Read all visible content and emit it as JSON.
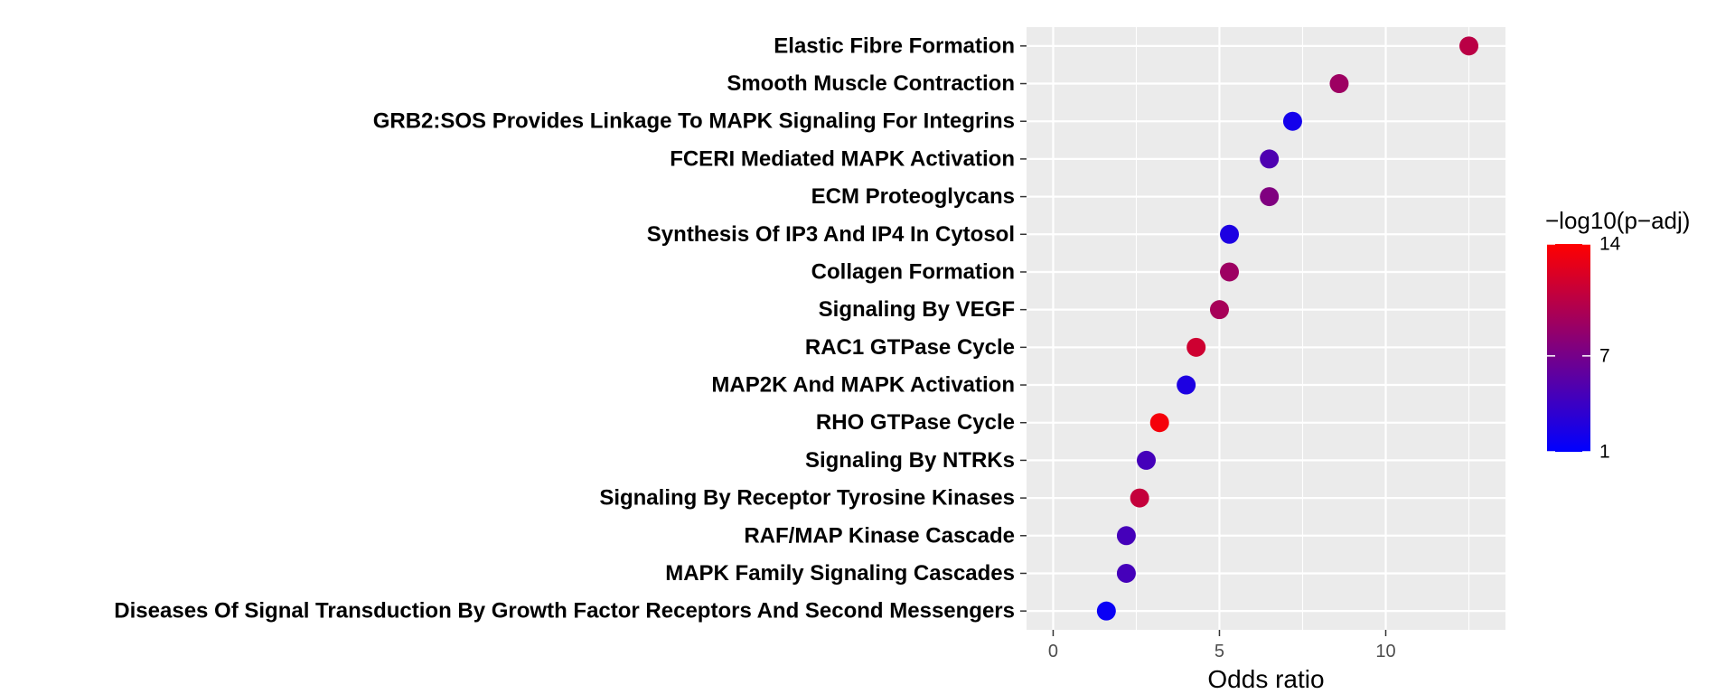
{
  "chart_data": {
    "type": "scatter",
    "xlabel": "Odds ratio",
    "ylabel": "",
    "xlim": [
      -0.8,
      13.6
    ],
    "x_ticks": [
      "0",
      "5",
      "10"
    ],
    "grid": true,
    "categories": [
      "Elastic Fibre Formation",
      "Smooth Muscle Contraction",
      "GRB2:SOS Provides Linkage To MAPK Signaling For Integrins",
      "FCERI Mediated MAPK Activation",
      "ECM Proteoglycans",
      "Synthesis Of IP3 And IP4 In Cytosol",
      "Collagen Formation",
      "Signaling By VEGF",
      "RAC1 GTPase Cycle",
      "MAP2K And MAPK Activation",
      "RHO GTPase Cycle",
      "Signaling By NTRKs",
      "Signaling By Receptor Tyrosine Kinases",
      "RAF/MAP Kinase Cascade",
      "MAPK Family Signaling Cascades",
      "Diseases Of Signal Transduction By Growth Factor Receptors And Second Messengers"
    ],
    "odds_ratio": [
      12.5,
      8.6,
      7.2,
      6.5,
      6.5,
      5.3,
      5.3,
      5.0,
      4.3,
      4.0,
      3.2,
      2.8,
      2.6,
      2.2,
      2.2,
      1.6
    ],
    "neg_log10_padj": [
      10.5,
      9.0,
      2.0,
      5.0,
      7.5,
      2.5,
      9.0,
      9.5,
      11.5,
      2.5,
      13.5,
      4.5,
      11.0,
      4.5,
      4.5,
      1.5
    ],
    "colorbar": {
      "title": "−log10(p−adj)",
      "range": [
        1,
        14
      ],
      "low_color": "#0000ff",
      "high_color": "#ff0000",
      "ticks": [
        "14",
        "7",
        "1"
      ]
    },
    "panel_background": "#ebebeb",
    "legend_position": "right"
  }
}
